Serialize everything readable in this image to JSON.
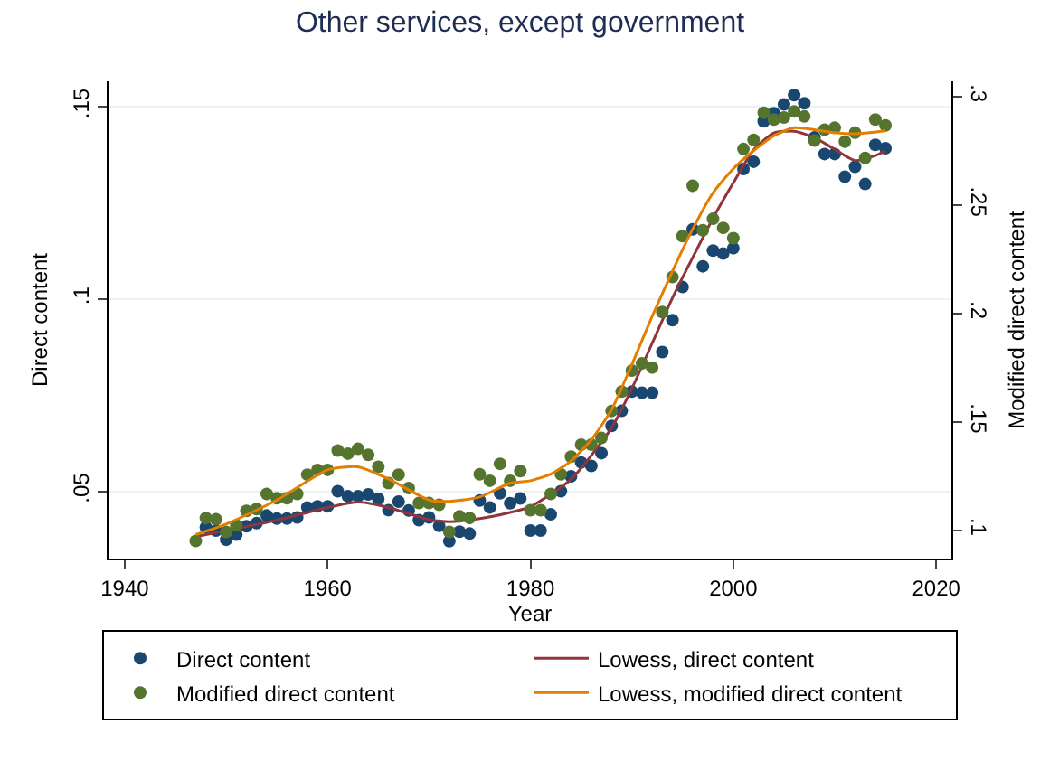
{
  "chart_data": {
    "type": "scatter",
    "title": "Other services, except government",
    "xlabel": "Year",
    "ylabel": "Direct content",
    "y2label": "Modified direct content",
    "xlim": [
      1938.4,
      2021.5
    ],
    "xticks": [
      1940,
      1960,
      1980,
      2000,
      2020
    ],
    "ylim": [
      0.0325,
      0.1566
    ],
    "yticks": [
      {
        "value": 0.05,
        "label": ".05"
      },
      {
        "value": 0.1,
        "label": ".1"
      },
      {
        "value": 0.15,
        "label": ".15"
      }
    ],
    "y2lim": [
      0.0869,
      0.307
    ],
    "y2ticks": [
      {
        "value": 0.1,
        "label": ".1"
      },
      {
        "value": 0.15,
        "label": ".15"
      },
      {
        "value": 0.2,
        "label": ".2"
      },
      {
        "value": 0.25,
        "label": ".25"
      },
      {
        "value": 0.3,
        "label": ".3"
      }
    ],
    "grid": "y",
    "legend": "bottom",
    "x": [
      1947,
      1948,
      1949,
      1950,
      1951,
      1952,
      1953,
      1954,
      1955,
      1956,
      1957,
      1958,
      1959,
      1960,
      1961,
      1962,
      1963,
      1964,
      1965,
      1966,
      1967,
      1968,
      1969,
      1970,
      1971,
      1972,
      1973,
      1974,
      1975,
      1976,
      1977,
      1978,
      1979,
      1980,
      1981,
      1982,
      1983,
      1984,
      1985,
      1986,
      1987,
      1988,
      1989,
      1990,
      1991,
      1992,
      1993,
      1994,
      1995,
      1996,
      1997,
      1998,
      1999,
      2000,
      2001,
      2002,
      2003,
      2004,
      2005,
      2006,
      2007,
      2008,
      2009,
      2010,
      2011,
      2012,
      2013,
      2014,
      2015
    ],
    "series": [
      {
        "name": "Direct content",
        "marker": "circle",
        "color": "#1a476f",
        "values": [
          null,
          0.0406,
          0.0398,
          0.0374,
          0.0387,
          0.0409,
          0.0417,
          0.0437,
          0.0429,
          0.0429,
          0.0432,
          0.0458,
          0.0461,
          0.0461,
          0.05,
          0.0487,
          0.0487,
          0.0492,
          0.048,
          0.0451,
          0.0473,
          0.045,
          0.0425,
          0.0432,
          0.041,
          0.037,
          0.0395,
          0.039,
          0.0476,
          0.0458,
          0.0495,
          0.0469,
          0.0481,
          0.0398,
          0.0398,
          0.044,
          0.05,
          0.0539,
          0.0575,
          0.0566,
          0.0599,
          0.067,
          0.0709,
          0.0759,
          0.0756,
          0.0756,
          0.0862,
          0.0945,
          0.1031,
          0.1181,
          0.1085,
          0.1126,
          0.1118,
          0.1132,
          0.1338,
          0.1357,
          0.1462,
          0.1483,
          0.1506,
          0.153,
          0.1509,
          0.142,
          0.1377,
          0.1377,
          0.1318,
          0.1344,
          0.1299,
          0.1401,
          0.1392
        ]
      },
      {
        "name": "Lowess, direct content",
        "type": "line",
        "marker": "none",
        "line_style": "solid",
        "color": "#90353b",
        "x": [
          1947,
          1950,
          1955,
          1960,
          1963,
          1966,
          1970,
          1972,
          1975,
          1978,
          1980,
          1984,
          1988,
          1990,
          1992,
          1994,
          1996,
          1998,
          2000,
          2002,
          2004,
          2006,
          2008,
          2010,
          2012,
          2014,
          2015
        ],
        "values": [
          0.0382,
          0.0398,
          0.0425,
          0.0458,
          0.0472,
          0.0458,
          0.0426,
          0.0421,
          0.0429,
          0.0445,
          0.046,
          0.0531,
          0.0665,
          0.0767,
          0.0885,
          0.1003,
          0.1108,
          0.121,
          0.1302,
          0.1388,
          0.1432,
          0.1436,
          0.142,
          0.1389,
          0.136,
          0.1373,
          0.1385
        ]
      },
      {
        "name": "Modified direct content",
        "marker": "circle",
        "axis": "y2",
        "color": "#55752f",
        "values": [
          0.095,
          0.1056,
          0.105,
          0.0992,
          0.1022,
          0.1089,
          0.1097,
          0.1167,
          0.1147,
          0.1147,
          0.1167,
          0.1256,
          0.1278,
          0.1278,
          0.1367,
          0.1353,
          0.1375,
          0.1347,
          0.1292,
          0.1217,
          0.1256,
          0.1194,
          0.1125,
          0.1125,
          0.1117,
          0.0992,
          0.1064,
          0.1056,
          0.1258,
          0.1228,
          0.1306,
          0.1228,
          0.1272,
          0.1092,
          0.1092,
          0.1167,
          0.1258,
          0.1339,
          0.1394,
          0.1394,
          0.1425,
          0.155,
          0.1639,
          0.1736,
          0.1769,
          0.175,
          0.2006,
          0.2167,
          0.2356,
          0.2589,
          0.2383,
          0.2436,
          0.2394,
          0.2347,
          0.2758,
          0.28,
          0.2925,
          0.2894,
          0.2903,
          0.2931,
          0.2908,
          0.2797,
          0.2847,
          0.2856,
          0.2792,
          0.2833,
          0.2717,
          0.2894,
          0.2867
        ]
      },
      {
        "name": "Lowess, modified direct content",
        "type": "line",
        "marker": "none",
        "line_style": "solid",
        "axis": "y2",
        "color": "#e37e00",
        "x": [
          1947,
          1950,
          1955,
          1960,
          1963,
          1966,
          1970,
          1972,
          1975,
          1978,
          1980,
          1982,
          1984,
          1986,
          1988,
          1990,
          1992,
          1994,
          1996,
          1998,
          2000,
          2002,
          2004,
          2006,
          2008,
          2010,
          2012,
          2015
        ],
        "values": [
          0.098,
          0.1028,
          0.1139,
          0.1278,
          0.1292,
          0.1236,
          0.1139,
          0.1133,
          0.1153,
          0.1217,
          0.1228,
          0.1258,
          0.1319,
          0.1417,
          0.1556,
          0.1764,
          0.1986,
          0.2194,
          0.2389,
          0.2556,
          0.2667,
          0.275,
          0.2819,
          0.2856,
          0.2847,
          0.2833,
          0.2828,
          0.2842
        ]
      }
    ]
  }
}
